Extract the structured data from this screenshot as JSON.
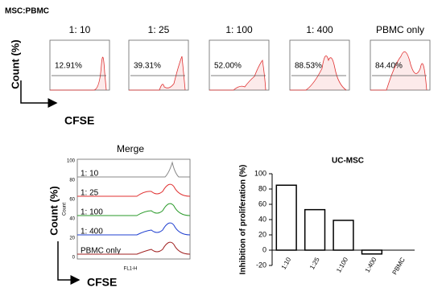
{
  "figure_label": "MSC:PBMC",
  "flow_panels": [
    {
      "title": "1: 10",
      "percent": "12.91%"
    },
    {
      "title": "1: 25",
      "percent": "39.31%"
    },
    {
      "title": "1: 100",
      "percent": "52.00%"
    },
    {
      "title": "1: 400",
      "percent": "88.53%"
    },
    {
      "title": "PBMC only",
      "percent": "84.40%"
    }
  ],
  "count_label": "Count (%)",
  "cfse_label": "CFSE",
  "merge": {
    "title": "Merge",
    "ylabel": "Count",
    "xlabel": "FL1-H",
    "yticks": [
      "0",
      "20",
      "40",
      "60",
      "80",
      "100"
    ],
    "labels": [
      "1: 10",
      "1: 25",
      "1: 100",
      "1: 400",
      "PBMC only"
    ]
  },
  "chart_data": {
    "type": "bar",
    "title": "UC-MSC",
    "ylabel": "Inhibition of proliferation (%)",
    "categories": [
      "1:10",
      "1:25",
      "1:100",
      "1:400",
      "PBMC"
    ],
    "values": [
      85,
      53,
      39,
      -5,
      0
    ],
    "color": "#ffffff",
    "ylim": [
      -20,
      100
    ],
    "yticks": [
      -20,
      0,
      20,
      40,
      60,
      80,
      100
    ]
  }
}
